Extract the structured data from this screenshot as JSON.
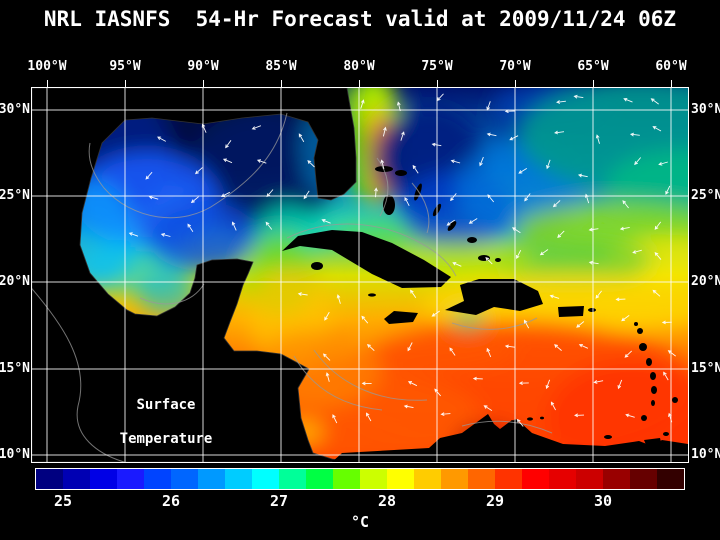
{
  "title": "NRL IASNFS  54-Hr Forecast valid at 2009/11/24 06Z",
  "map": {
    "lon_labels": [
      "100°W",
      "95°W",
      "90°W",
      "85°W",
      "80°W",
      "75°W",
      "70°W",
      "65°W",
      "60°W"
    ],
    "lat_labels": [
      "30°N",
      "25°N",
      "20°N",
      "15°N",
      "10°N"
    ],
    "annotation": {
      "line1": "Surface",
      "line2": "Temperature"
    },
    "grid_color": "#ffffff",
    "land_color": "#000000",
    "vector_color": "#ffffff",
    "contour_color": "#999999"
  },
  "colorbar": {
    "unit": "°C",
    "tick_labels": [
      "25",
      "26",
      "27",
      "28",
      "29",
      "30"
    ],
    "tick_positions_pct": [
      4.17,
      20.83,
      37.5,
      54.17,
      70.83,
      87.5
    ],
    "segment_colors": [
      "#000080",
      "#0000b3",
      "#0000e6",
      "#1a1aff",
      "#0044ff",
      "#0066ff",
      "#0099ff",
      "#00ccff",
      "#00ffff",
      "#00ff99",
      "#00ff44",
      "#66ff00",
      "#ccff00",
      "#ffff00",
      "#ffcc00",
      "#ff9900",
      "#ff6600",
      "#ff3300",
      "#ff0000",
      "#e60000",
      "#cc0000",
      "#990000",
      "#660000",
      "#330000"
    ]
  }
}
